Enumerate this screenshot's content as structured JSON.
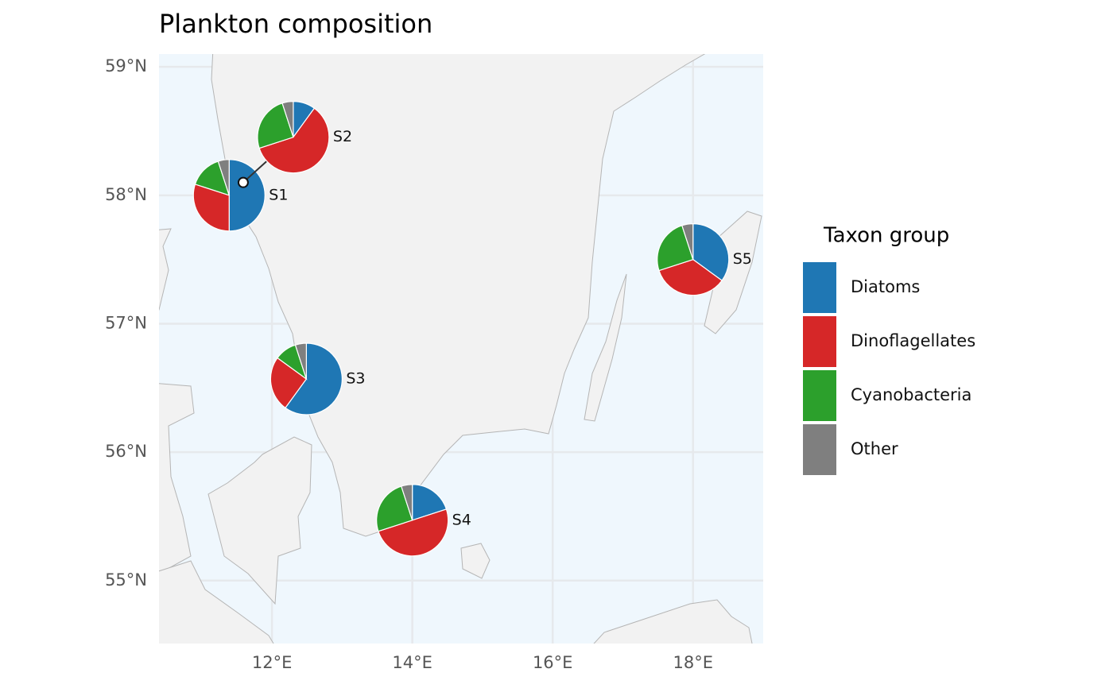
{
  "chart_data": {
    "type": "pie-map",
    "title": "Plankton composition",
    "categories": [
      "S1",
      "S2",
      "S3",
      "S4",
      "S5"
    ],
    "x": [
      11.39,
      11.59,
      12.49,
      14.0,
      18.0
    ],
    "y": [
      58.0,
      58.1,
      56.57,
      55.47,
      57.5
    ],
    "series": [
      {
        "name": "Diatoms",
        "color": "#1f77b4",
        "values": [
          50,
          10,
          60,
          20,
          35
        ]
      },
      {
        "name": "Dinoflagellates",
        "color": "#d62728",
        "values": [
          30,
          60,
          25,
          50,
          35
        ]
      },
      {
        "name": "Cyanobacteria",
        "color": "#2ca02c",
        "values": [
          15,
          25,
          10,
          25,
          25
        ]
      },
      {
        "name": "Other",
        "color": "#7f7f7f",
        "values": [
          5,
          5,
          5,
          5,
          5
        ]
      }
    ],
    "legend_title": "Taxon group",
    "xlim": [
      10.39,
      19.0
    ],
    "ylim": [
      54.51,
      59.1
    ],
    "xticks": [
      {
        "value": 12,
        "label": "12°E"
      },
      {
        "value": 14,
        "label": "14°E"
      },
      {
        "value": 16,
        "label": "16°E"
      },
      {
        "value": 18,
        "label": "18°E"
      }
    ],
    "yticks": [
      {
        "value": 55,
        "label": "55°N"
      },
      {
        "value": 56,
        "label": "56°N"
      },
      {
        "value": 57,
        "label": "57°N"
      },
      {
        "value": 58,
        "label": "58°N"
      },
      {
        "value": 59,
        "label": "59°N"
      }
    ],
    "grid": true
  }
}
